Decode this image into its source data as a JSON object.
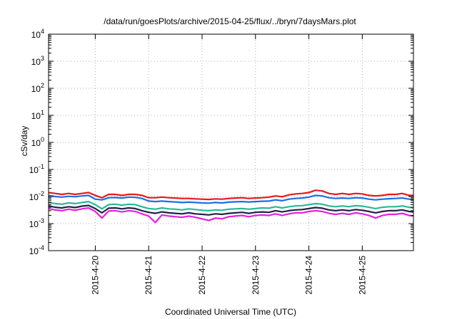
{
  "chart_data": {
    "type": "line",
    "title": "/data/run/goesPlots/archive/2015-04-25/flux/../bryn/7daysMars.plot",
    "xlabel": "Coordinated Universal Time (UTC)",
    "ylabel": "cSv/day",
    "y_scale": "log",
    "ylim": [
      0.0001,
      10000
    ],
    "y_ticks": [
      {
        "value": 0.0001,
        "base": "10",
        "exp": "-4"
      },
      {
        "value": 0.001,
        "base": "10",
        "exp": "-3"
      },
      {
        "value": 0.01,
        "base": "10",
        "exp": "-2"
      },
      {
        "value": 0.1,
        "base": "10",
        "exp": "-1"
      },
      {
        "value": 1,
        "base": "10",
        "exp": "0"
      },
      {
        "value": 10,
        "base": "10",
        "exp": "1"
      },
      {
        "value": 100,
        "base": "10",
        "exp": "2"
      },
      {
        "value": 1000,
        "base": "10",
        "exp": "3"
      },
      {
        "value": 10000,
        "base": "10",
        "exp": "4"
      }
    ],
    "xlim": [
      "2015-04-19T03:00",
      "2015-04-25T23:00"
    ],
    "x_ticks": [
      {
        "value": "2015-04-20T00:00",
        "label": "2015-4-20"
      },
      {
        "value": "2015-04-21T00:00",
        "label": "2015-4-21"
      },
      {
        "value": "2015-04-22T00:00",
        "label": "2015-4-22"
      },
      {
        "value": "2015-04-23T00:00",
        "label": "2015-4-23"
      },
      {
        "value": "2015-04-24T00:00",
        "label": "2015-4-24"
      },
      {
        "value": "2015-04-25T00:00",
        "label": "2015-4-25"
      }
    ],
    "grid": true,
    "legend": "none",
    "x": [
      "2015-04-19T03:00",
      "2015-04-19T06:00",
      "2015-04-19T09:00",
      "2015-04-19T12:00",
      "2015-04-19T15:00",
      "2015-04-19T18:00",
      "2015-04-19T21:00",
      "2015-04-20T00:00",
      "2015-04-20T03:00",
      "2015-04-20T06:00",
      "2015-04-20T09:00",
      "2015-04-20T12:00",
      "2015-04-20T15:00",
      "2015-04-20T18:00",
      "2015-04-20T21:00",
      "2015-04-21T00:00",
      "2015-04-21T03:00",
      "2015-04-21T06:00",
      "2015-04-21T09:00",
      "2015-04-21T12:00",
      "2015-04-21T15:00",
      "2015-04-21T18:00",
      "2015-04-21T21:00",
      "2015-04-22T00:00",
      "2015-04-22T03:00",
      "2015-04-22T06:00",
      "2015-04-22T09:00",
      "2015-04-22T12:00",
      "2015-04-22T15:00",
      "2015-04-22T18:00",
      "2015-04-22T21:00",
      "2015-04-23T00:00",
      "2015-04-23T03:00",
      "2015-04-23T06:00",
      "2015-04-23T09:00",
      "2015-04-23T12:00",
      "2015-04-23T15:00",
      "2015-04-23T18:00",
      "2015-04-23T21:00",
      "2015-04-24T00:00",
      "2015-04-24T03:00",
      "2015-04-24T06:00",
      "2015-04-24T09:00",
      "2015-04-24T12:00",
      "2015-04-24T15:00",
      "2015-04-24T18:00",
      "2015-04-24T21:00",
      "2015-04-25T00:00",
      "2015-04-25T03:00",
      "2015-04-25T06:00",
      "2015-04-25T09:00",
      "2015-04-25T12:00",
      "2015-04-25T15:00",
      "2015-04-25T18:00",
      "2015-04-25T21:00",
      "2015-04-25T23:00"
    ],
    "series": [
      {
        "color": "#e41a1c",
        "values": [
          0.014,
          0.013,
          0.012,
          0.013,
          0.012,
          0.013,
          0.014,
          0.011,
          0.009,
          0.012,
          0.012,
          0.011,
          0.012,
          0.012,
          0.011,
          0.009,
          0.009,
          0.0095,
          0.009,
          0.0088,
          0.0085,
          0.0085,
          0.0082,
          0.008,
          0.0078,
          0.0082,
          0.008,
          0.0085,
          0.0088,
          0.009,
          0.0085,
          0.0088,
          0.009,
          0.0095,
          0.0105,
          0.0098,
          0.0115,
          0.0125,
          0.013,
          0.014,
          0.017,
          0.016,
          0.013,
          0.012,
          0.013,
          0.012,
          0.013,
          0.0125,
          0.011,
          0.0105,
          0.011,
          0.012,
          0.012,
          0.013,
          0.011,
          0.011
        ]
      },
      {
        "color": "#1c6ee8",
        "values": [
          0.011,
          0.01,
          0.0095,
          0.0102,
          0.0098,
          0.0105,
          0.011,
          0.008,
          0.0075,
          0.009,
          0.0092,
          0.0088,
          0.0095,
          0.0093,
          0.0085,
          0.0068,
          0.0065,
          0.0068,
          0.0065,
          0.0063,
          0.006,
          0.0062,
          0.006,
          0.0058,
          0.0057,
          0.006,
          0.0058,
          0.0062,
          0.0064,
          0.0065,
          0.0063,
          0.0065,
          0.0067,
          0.0068,
          0.0075,
          0.007,
          0.008,
          0.0085,
          0.0088,
          0.0095,
          0.011,
          0.0105,
          0.009,
          0.0085,
          0.0088,
          0.0085,
          0.009,
          0.0088,
          0.008,
          0.0075,
          0.008,
          0.0083,
          0.0085,
          0.0088,
          0.008,
          0.0078
        ]
      },
      {
        "color": "#2ab79b",
        "values": [
          0.006,
          0.0055,
          0.0052,
          0.0058,
          0.0055,
          0.006,
          0.0065,
          0.005,
          0.0035,
          0.005,
          0.0052,
          0.0048,
          0.0052,
          0.005,
          0.0042,
          0.0036,
          0.0034,
          0.0038,
          0.0035,
          0.0034,
          0.0032,
          0.0035,
          0.0033,
          0.0031,
          0.003,
          0.0032,
          0.0031,
          0.0034,
          0.0035,
          0.0036,
          0.0034,
          0.0036,
          0.0038,
          0.0037,
          0.0042,
          0.0038,
          0.0042,
          0.0045,
          0.0046,
          0.005,
          0.0055,
          0.0052,
          0.0045,
          0.0042,
          0.0045,
          0.0042,
          0.0046,
          0.0044,
          0.004,
          0.0036,
          0.004,
          0.0042,
          0.0042,
          0.0045,
          0.004,
          0.0038
        ]
      },
      {
        "color": "#222244",
        "values": [
          0.0045,
          0.004,
          0.0038,
          0.0042,
          0.0039,
          0.0044,
          0.0047,
          0.0036,
          0.0025,
          0.0037,
          0.0038,
          0.0035,
          0.0038,
          0.0036,
          0.003,
          0.0026,
          0.0024,
          0.0027,
          0.0025,
          0.0024,
          0.0023,
          0.0025,
          0.0023,
          0.0022,
          0.0021,
          0.0023,
          0.0022,
          0.0024,
          0.0025,
          0.0026,
          0.0024,
          0.0026,
          0.0027,
          0.0026,
          0.003,
          0.0027,
          0.003,
          0.0032,
          0.0033,
          0.0036,
          0.0039,
          0.0037,
          0.0032,
          0.003,
          0.0032,
          0.003,
          0.0033,
          0.0031,
          0.0028,
          0.0025,
          0.0028,
          0.003,
          0.003,
          0.0032,
          0.0028,
          0.0027
        ]
      },
      {
        "color": "#e91ee0",
        "values": [
          0.0036,
          0.0032,
          0.003,
          0.0034,
          0.0031,
          0.0035,
          0.0038,
          0.0028,
          0.0016,
          0.0029,
          0.003,
          0.0027,
          0.003,
          0.0028,
          0.0023,
          0.0019,
          0.0011,
          0.0021,
          0.0019,
          0.0018,
          0.0017,
          0.0019,
          0.0017,
          0.0015,
          0.0013,
          0.0016,
          0.0015,
          0.0018,
          0.0019,
          0.002,
          0.0018,
          0.002,
          0.0021,
          0.002,
          0.0023,
          0.002,
          0.0023,
          0.0025,
          0.0025,
          0.0028,
          0.003,
          0.0028,
          0.0024,
          0.0022,
          0.0024,
          0.0022,
          0.0025,
          0.0023,
          0.002,
          0.0016,
          0.002,
          0.0022,
          0.0022,
          0.0024,
          0.002,
          0.0019
        ]
      }
    ]
  }
}
